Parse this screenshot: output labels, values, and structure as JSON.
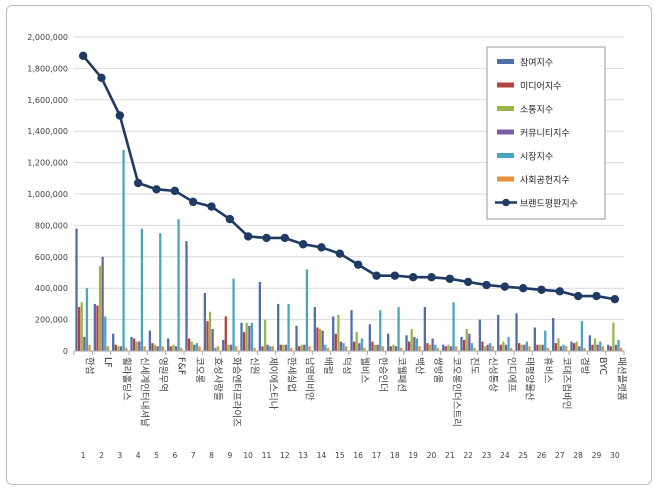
{
  "chart_data": {
    "type": "bar+line",
    "title": "",
    "ylim": [
      0,
      2000000
    ],
    "yticks": [
      "0",
      "200,000",
      "400,000",
      "600,000",
      "800,000",
      "1,000,000",
      "1,200,000",
      "1,400,000",
      "1,600,000",
      "1,800,000",
      "2,000,000"
    ],
    "categories": [
      "한섬",
      "LF",
      "휠라홀딩스",
      "신세계인터내셔날",
      "영원무역",
      "F&F",
      "코오롱",
      "효성사랑들",
      "화승엔터프라이즈",
      "신원",
      "제이에스티나",
      "한세실업",
      "남영비비안",
      "배럴",
      "덕성",
      "웰비스",
      "한승인더",
      "코웰패션",
      "백산",
      "쌍방울",
      "코오롱인더스트리",
      "진도",
      "신성통상",
      "인디에프",
      "태평양물산",
      "휴비스",
      "코데즈컴바인",
      "경방",
      "BYC",
      "패션플랫폼"
    ],
    "indices": [
      "1",
      "2",
      "3",
      "4",
      "5",
      "6",
      "7",
      "8",
      "9",
      "10",
      "11",
      "12",
      "13",
      "14",
      "15",
      "16",
      "17",
      "18",
      "19",
      "20",
      "21",
      "22",
      "23",
      "24",
      "25",
      "26",
      "27",
      "28",
      "29",
      "30"
    ],
    "series": [
      {
        "name": "참여지수",
        "color": "#4f6fa8",
        "values": [
          780000,
          300000,
          110000,
          90000,
          130000,
          80000,
          700000,
          370000,
          70000,
          180000,
          440000,
          300000,
          160000,
          280000,
          220000,
          260000,
          170000,
          110000,
          100000,
          280000,
          40000,
          90000,
          200000,
          230000,
          240000,
          150000,
          210000,
          60000,
          100000,
          40000
        ]
      },
      {
        "name": "미디어지수",
        "color": "#b04340",
        "values": [
          280000,
          290000,
          40000,
          80000,
          50000,
          30000,
          80000,
          190000,
          220000,
          120000,
          30000,
          40000,
          30000,
          150000,
          110000,
          60000,
          60000,
          30000,
          60000,
          50000,
          30000,
          70000,
          60000,
          40000,
          50000,
          40000,
          50000,
          50000,
          40000,
          30000
        ]
      },
      {
        "name": "소통지수",
        "color": "#98b64a",
        "values": [
          310000,
          540000,
          30000,
          60000,
          40000,
          40000,
          60000,
          250000,
          40000,
          180000,
          200000,
          40000,
          40000,
          140000,
          230000,
          120000,
          40000,
          40000,
          140000,
          40000,
          40000,
          140000,
          30000,
          60000,
          40000,
          40000,
          80000,
          60000,
          80000,
          180000
        ]
      },
      {
        "name": "커뮤니티지수",
        "color": "#7b5fa5",
        "values": [
          90000,
          600000,
          30000,
          60000,
          30000,
          30000,
          40000,
          140000,
          40000,
          160000,
          40000,
          40000,
          40000,
          130000,
          60000,
          50000,
          40000,
          30000,
          90000,
          80000,
          30000,
          110000,
          40000,
          40000,
          40000,
          40000,
          30000,
          30000,
          40000,
          40000
        ]
      },
      {
        "name": "시장지수",
        "color": "#4aa6bf",
        "values": [
          400000,
          220000,
          1280000,
          780000,
          750000,
          840000,
          50000,
          20000,
          460000,
          180000,
          30000,
          300000,
          520000,
          40000,
          50000,
          80000,
          260000,
          280000,
          80000,
          40000,
          310000,
          50000,
          50000,
          90000,
          60000,
          130000,
          40000,
          190000,
          60000,
          70000
        ]
      },
      {
        "name": "사회공헌지수",
        "color": "#e6923a",
        "values": [
          40000,
          30000,
          20000,
          30000,
          30000,
          20000,
          30000,
          30000,
          30000,
          20000,
          30000,
          20000,
          30000,
          20000,
          30000,
          20000,
          30000,
          20000,
          30000,
          20000,
          30000,
          20000,
          30000,
          20000,
          30000,
          20000,
          30000,
          20000,
          30000,
          20000
        ]
      }
    ],
    "line": {
      "name": "브랜드평판지수",
      "color": "#1f3b63",
      "values": [
        1880000,
        1740000,
        1500000,
        1070000,
        1030000,
        1020000,
        950000,
        920000,
        840000,
        730000,
        720000,
        720000,
        680000,
        660000,
        620000,
        550000,
        480000,
        480000,
        470000,
        470000,
        460000,
        440000,
        420000,
        410000,
        400000,
        390000,
        380000,
        350000,
        350000,
        330000
      ]
    },
    "legend_position": "top-right"
  }
}
